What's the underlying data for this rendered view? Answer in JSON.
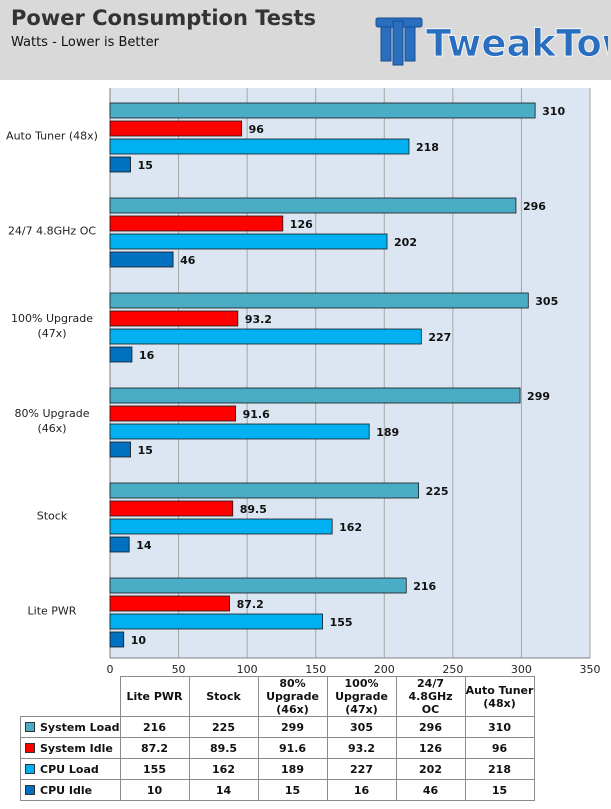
{
  "header": {
    "title": "Power Consumption Tests",
    "subtitle": "Watts - Lower is Better",
    "logo_text": "TweakTown"
  },
  "chart_data": {
    "type": "bar",
    "orientation": "horizontal",
    "categories": [
      "Auto Tuner (48x)",
      "24/7 4.8GHz OC",
      "100% Upgrade (47x)",
      "80% Upgrade (46x)",
      "Stock",
      "Lite PWR"
    ],
    "category_label_lines": [
      [
        "Auto Tuner (48x)"
      ],
      [
        "24/7 4.8GHz OC"
      ],
      [
        "100% Upgrade",
        "(47x)"
      ],
      [
        "80% Upgrade",
        "(46x)"
      ],
      [
        "Stock"
      ],
      [
        "Lite PWR"
      ]
    ],
    "series": [
      {
        "name": "System Load",
        "color": "#4bacc6",
        "values": [
          310,
          296,
          305,
          299,
          225,
          216
        ],
        "labels": [
          "310",
          "296",
          "305",
          "299",
          "225",
          "216"
        ]
      },
      {
        "name": "System Idle",
        "color": "#ff0000",
        "values": [
          96,
          126,
          93.2,
          91.6,
          89.5,
          87.2
        ],
        "labels": [
          "96",
          "126",
          "93.2",
          "91.6",
          "89.5",
          "87.2"
        ]
      },
      {
        "name": "CPU Load",
        "color": "#00b0f0",
        "values": [
          218,
          202,
          227,
          189,
          162,
          155
        ],
        "labels": [
          "218",
          "202",
          "227",
          "189",
          "162",
          "155"
        ]
      },
      {
        "name": "CPU Idle",
        "color": "#0070c0",
        "values": [
          15,
          46,
          16,
          15,
          14,
          10
        ],
        "labels": [
          "15",
          "46",
          "16",
          "15",
          "14",
          "10"
        ]
      }
    ],
    "xlim": [
      0,
      350
    ],
    "xticks": [
      0,
      50,
      100,
      150,
      200,
      250,
      300,
      350
    ],
    "grid": true,
    "table": {
      "columns": [
        "Lite PWR",
        "Stock",
        "80% Upgrade (46x)",
        "100% Upgrade (47x)",
        "24/7 4.8GHz OC",
        "Auto Tuner (48x)"
      ],
      "column_lines": [
        [
          "Lite PWR"
        ],
        [
          "Stock"
        ],
        [
          "80% Upgrade",
          "(46x)"
        ],
        [
          "100% Upgrade",
          "(47x)"
        ],
        [
          "24/7 4.8GHz",
          "OC"
        ],
        [
          "Auto Tuner",
          "(48x)"
        ]
      ],
      "rows": [
        {
          "name": "System Load",
          "color": "#4bacc6",
          "values": [
            "216",
            "225",
            "299",
            "305",
            "296",
            "310"
          ]
        },
        {
          "name": "System Idle",
          "color": "#ff0000",
          "values": [
            "87.2",
            "89.5",
            "91.6",
            "93.2",
            "126",
            "96"
          ]
        },
        {
          "name": "CPU Load",
          "color": "#00b0f0",
          "values": [
            "155",
            "162",
            "189",
            "227",
            "202",
            "218"
          ]
        },
        {
          "name": "CPU Idle",
          "color": "#0070c0",
          "values": [
            "10",
            "14",
            "15",
            "16",
            "46",
            "15"
          ]
        }
      ]
    }
  }
}
